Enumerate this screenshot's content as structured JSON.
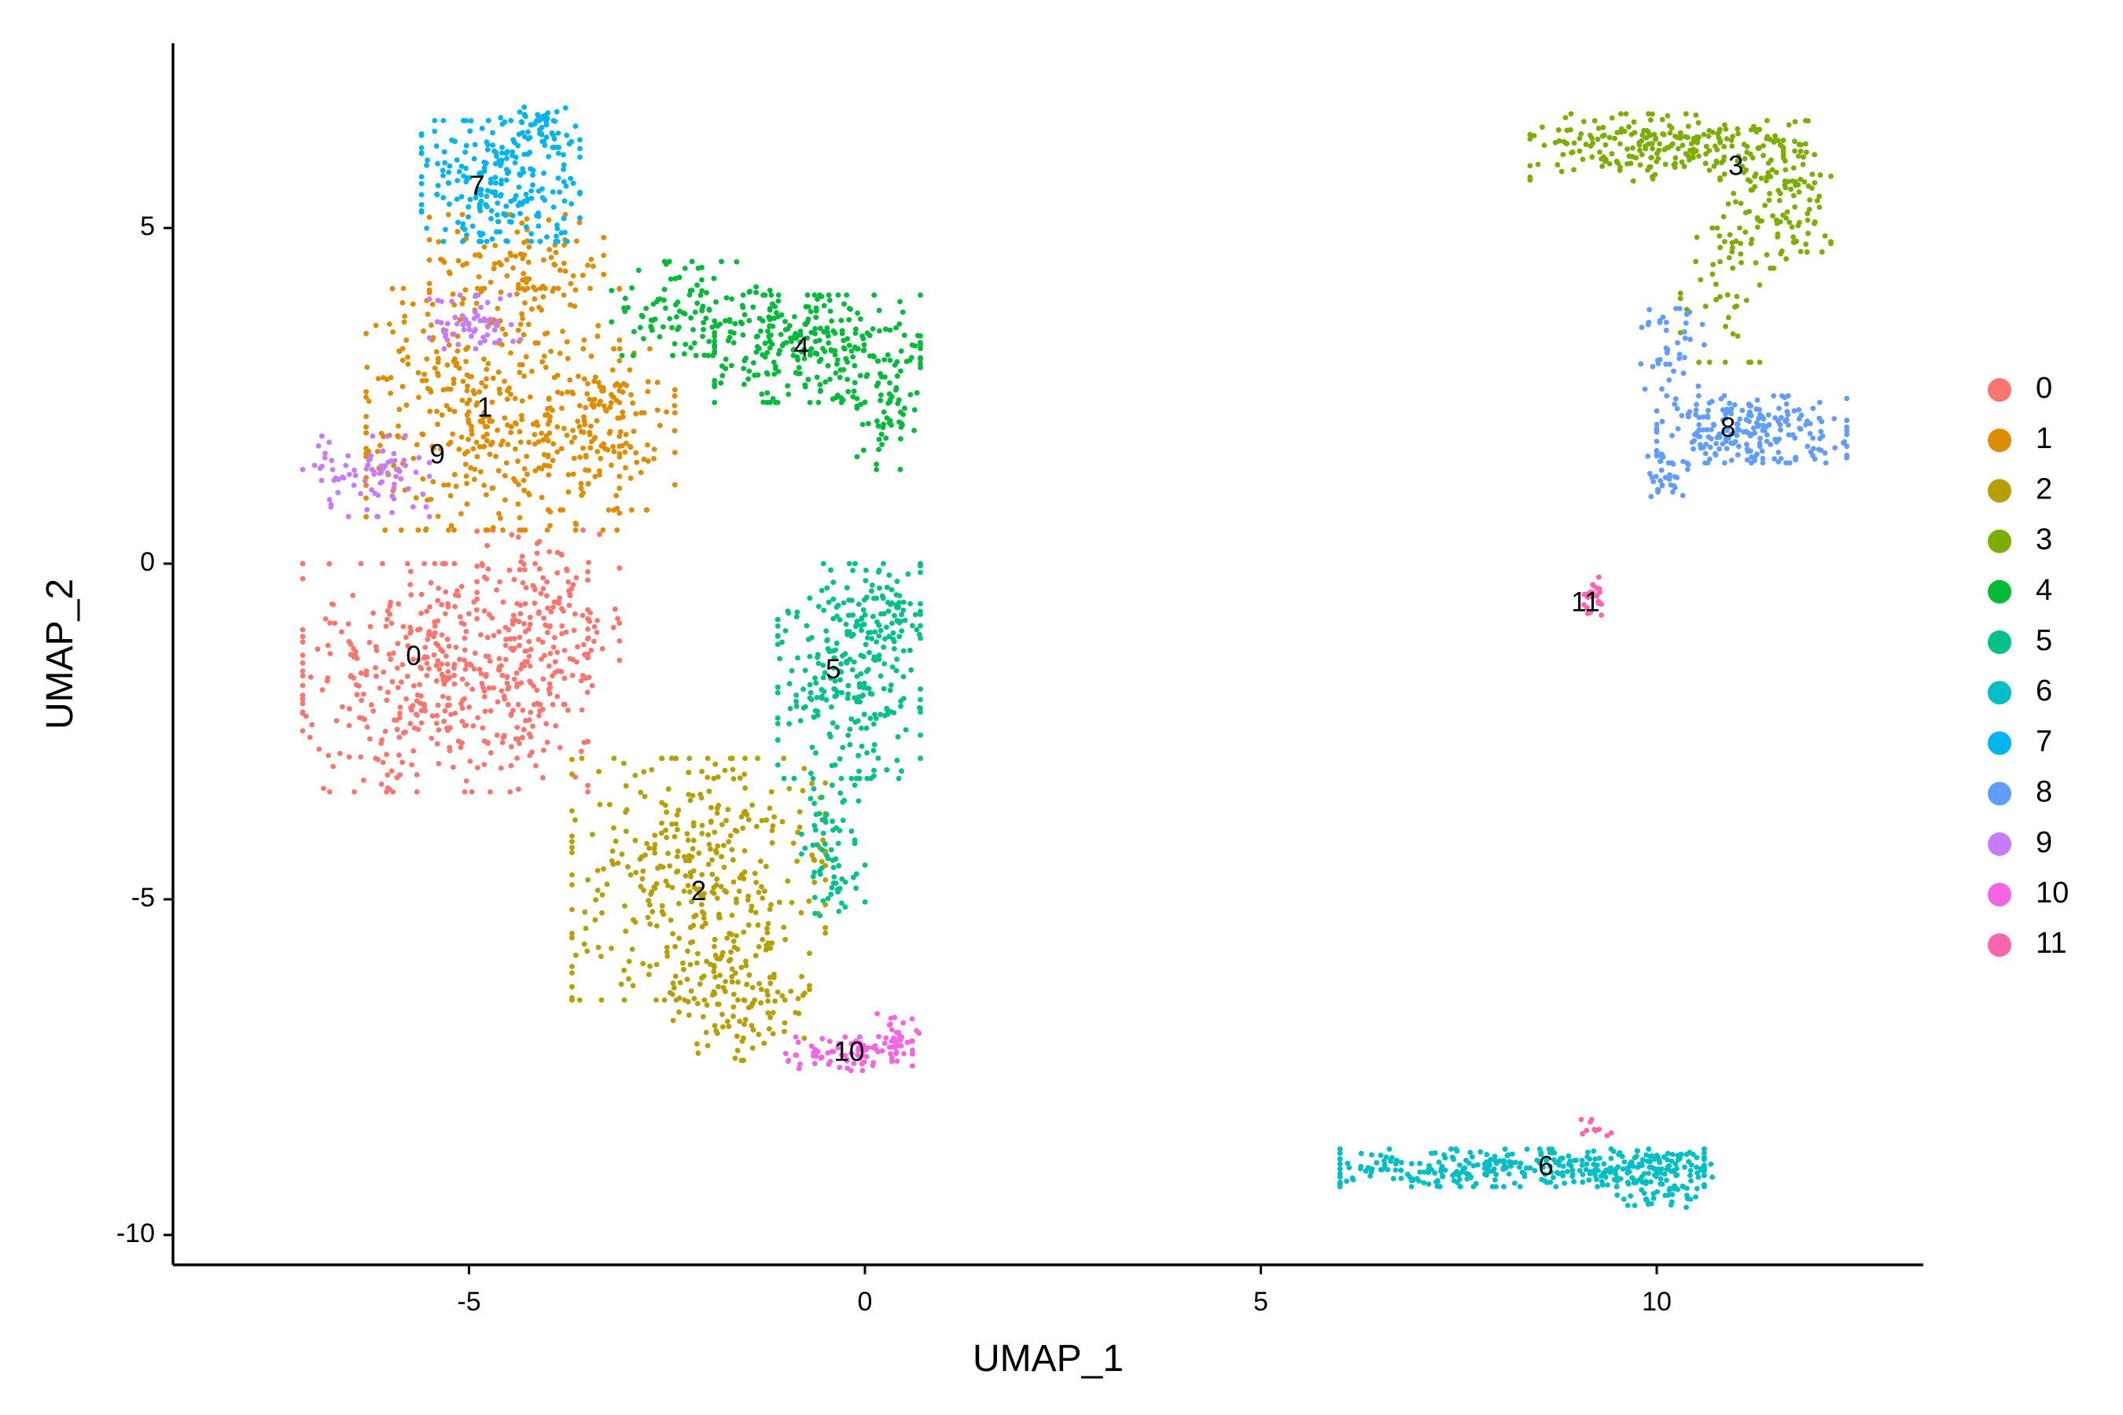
{
  "chart_data": {
    "type": "scatter",
    "xlabel": "UMAP_1",
    "ylabel": "UMAP_2",
    "xlim": [
      -8.7,
      13.4
    ],
    "ylim": [
      -10.5,
      7.8
    ],
    "xticks": [
      -5,
      0,
      5,
      10
    ],
    "yticks": [
      -10,
      -5,
      0,
      5
    ],
    "xtick_labels": [
      "-5",
      "0",
      "5",
      "10"
    ],
    "ytick_labels": [
      "-10",
      "-5",
      "0",
      "5"
    ],
    "grid": false,
    "legend_position": "right",
    "series": [
      {
        "name": "0",
        "color": "#F8766D",
        "label_pos": [
          -5.7,
          -1.4
        ],
        "blobs": [
          {
            "cx": -5.3,
            "cy": -1.7,
            "rx": 1.8,
            "ry": 1.7,
            "n": 450
          },
          {
            "cx": -4.0,
            "cy": -0.8,
            "rx": 0.9,
            "ry": 1.3,
            "n": 150
          }
        ]
      },
      {
        "name": "1",
        "color": "#DE8C00",
        "label_pos": [
          -4.8,
          2.3
        ],
        "blobs": [
          {
            "cx": -4.7,
            "cy": 2.3,
            "rx": 1.6,
            "ry": 1.8,
            "n": 420
          },
          {
            "cx": -3.2,
            "cy": 2.0,
            "rx": 0.8,
            "ry": 1.2,
            "n": 120
          },
          {
            "cx": -4.4,
            "cy": 4.6,
            "rx": 1.1,
            "ry": 0.6,
            "n": 90
          }
        ]
      },
      {
        "name": "2",
        "color": "#B79F00",
        "label_pos": [
          -2.1,
          -4.9
        ],
        "blobs": [
          {
            "cx": -2.1,
            "cy": -4.7,
            "rx": 1.6,
            "ry": 1.8,
            "n": 380
          },
          {
            "cx": -1.6,
            "cy": -6.5,
            "rx": 0.9,
            "ry": 0.9,
            "n": 110
          }
        ]
      },
      {
        "name": "3",
        "color": "#7CAE00",
        "label_pos": [
          11.0,
          5.9
        ],
        "blobs": [
          {
            "cx": 10.0,
            "cy": 6.2,
            "rx": 1.6,
            "ry": 0.5,
            "n": 220
          },
          {
            "cx": 11.5,
            "cy": 5.5,
            "rx": 0.7,
            "ry": 1.1,
            "n": 140
          },
          {
            "cx": 10.8,
            "cy": 4.0,
            "rx": 0.5,
            "ry": 1.0,
            "n": 40
          }
        ]
      },
      {
        "name": "4",
        "color": "#00BA38",
        "label_pos": [
          -0.8,
          3.2
        ],
        "blobs": [
          {
            "cx": -0.6,
            "cy": 3.2,
            "rx": 1.3,
            "ry": 0.8,
            "n": 260
          },
          {
            "cx": -2.2,
            "cy": 3.8,
            "rx": 1.0,
            "ry": 0.7,
            "n": 120
          },
          {
            "cx": 0.3,
            "cy": 2.3,
            "rx": 0.4,
            "ry": 0.9,
            "n": 60
          }
        ]
      },
      {
        "name": "5",
        "color": "#00C08B",
        "label_pos": [
          -0.4,
          -1.6
        ],
        "blobs": [
          {
            "cx": -0.2,
            "cy": -1.6,
            "rx": 0.9,
            "ry": 1.6,
            "n": 260
          },
          {
            "cx": -0.4,
            "cy": -4.3,
            "rx": 0.4,
            "ry": 1.0,
            "n": 70
          },
          {
            "cx": 0.1,
            "cy": -0.7,
            "rx": 0.5,
            "ry": 0.6,
            "n": 60
          }
        ]
      },
      {
        "name": "6",
        "color": "#00BFC4",
        "label_pos": [
          8.6,
          -9.0
        ],
        "blobs": [
          {
            "cx": 8.3,
            "cy": -9.0,
            "rx": 2.3,
            "ry": 0.28,
            "n": 330
          },
          {
            "cx": 10.1,
            "cy": -9.2,
            "rx": 0.6,
            "ry": 0.4,
            "n": 90
          }
        ]
      },
      {
        "name": "7",
        "color": "#00B4F0",
        "label_pos": [
          -4.9,
          5.6
        ],
        "blobs": [
          {
            "cx": -4.6,
            "cy": 5.7,
            "rx": 1.0,
            "ry": 0.9,
            "n": 230
          },
          {
            "cx": -4.1,
            "cy": 6.5,
            "rx": 0.5,
            "ry": 0.3,
            "n": 50
          }
        ]
      },
      {
        "name": "8",
        "color": "#619CFF",
        "label_pos": [
          10.9,
          2.0
        ],
        "blobs": [
          {
            "cx": 11.2,
            "cy": 2.0,
            "rx": 1.2,
            "ry": 0.5,
            "n": 230
          },
          {
            "cx": 10.2,
            "cy": 3.2,
            "rx": 0.4,
            "ry": 0.6,
            "n": 40
          },
          {
            "cx": 10.1,
            "cy": 1.3,
            "rx": 0.3,
            "ry": 0.3,
            "n": 30
          }
        ]
      },
      {
        "name": "9",
        "color": "#C77CFF",
        "label_pos": [
          -5.4,
          1.6
        ],
        "blobs": [
          {
            "cx": -6.3,
            "cy": 1.3,
            "rx": 0.8,
            "ry": 0.6,
            "n": 80
          },
          {
            "cx": -4.9,
            "cy": 3.6,
            "rx": 0.6,
            "ry": 0.4,
            "n": 60
          }
        ]
      },
      {
        "name": "10",
        "color": "#F564E3",
        "label_pos": [
          -0.2,
          -7.3
        ],
        "blobs": [
          {
            "cx": -0.2,
            "cy": -7.3,
            "rx": 0.8,
            "ry": 0.25,
            "n": 80
          },
          {
            "cx": 0.4,
            "cy": -7.0,
            "rx": 0.3,
            "ry": 0.3,
            "n": 30
          }
        ]
      },
      {
        "name": "11",
        "color": "#FF64B0",
        "label_pos": [
          9.1,
          -0.6
        ],
        "blobs": [
          {
            "cx": 9.2,
            "cy": -0.5,
            "rx": 0.12,
            "ry": 0.3,
            "n": 25
          },
          {
            "cx": 9.2,
            "cy": -8.4,
            "rx": 0.25,
            "ry": 0.12,
            "n": 10
          }
        ]
      }
    ]
  }
}
